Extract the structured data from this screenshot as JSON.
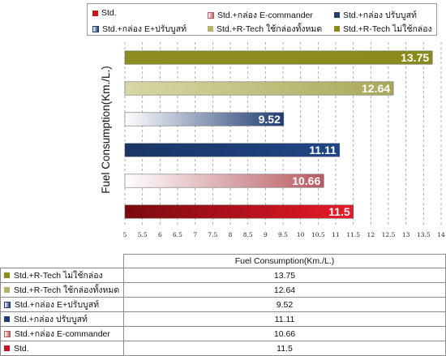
{
  "chart_data": {
    "type": "bar",
    "orientation": "horizontal",
    "ylabel": "Fuel Consumption(Km./L.)",
    "xlim": [
      5,
      14
    ],
    "x_ticks": [
      "5",
      "5.5",
      "6",
      "6.5",
      "7",
      "7.5",
      "8",
      "8.5",
      "9",
      "9.5",
      "10",
      "10.5",
      "11",
      "11.5",
      "12",
      "12.5",
      "13",
      "13.5",
      "14"
    ],
    "grid": "vertical dashed",
    "legend_position": "top",
    "series_label": "Fuel Consumption(Km./L.)",
    "categories": [
      "Std.",
      "Std.+กล่อง E-commander",
      "Std.+กล่อง ปรับบูสท์",
      "Std.+กล่อง E+ปรับบูสท์",
      "Std.+R-Tech ใช้กล่องทั้งหมด",
      "Std.+R-Tech ไม่ใช้กล่อง"
    ],
    "values": [
      11.5,
      10.66,
      11.11,
      9.52,
      12.64,
      13.75
    ],
    "value_labels": [
      "11.5",
      "10.66",
      "11.11",
      "9.52",
      "12.64",
      "13.75"
    ],
    "colors": [
      "#c4141f",
      "#c98488",
      "#1f3c73",
      "#8da4c8",
      "#b4b36c",
      "#8c8c1e"
    ],
    "table_rows": [
      {
        "label": "Std.+R-Tech ไม่ใช้กล่อง",
        "value": "13.75",
        "color": "#8c8c1e"
      },
      {
        "label": "Std.+R-Tech ใช้กล่องทั้งหมด",
        "value": "12.64",
        "color": "#b4b36c"
      },
      {
        "label": "Std.+กล่อง E+ปรับบูสท์",
        "value": "9.52",
        "color": "#8da4c8"
      },
      {
        "label": "Std.+กล่อง ปรับบูสท์",
        "value": "11.11",
        "color": "#1f3c73"
      },
      {
        "label": "Std.+กล่อง E-commander",
        "value": "10.66",
        "color": "#c98488"
      },
      {
        "label": "Std.",
        "value": "11.5",
        "color": "#c4141f"
      }
    ]
  }
}
